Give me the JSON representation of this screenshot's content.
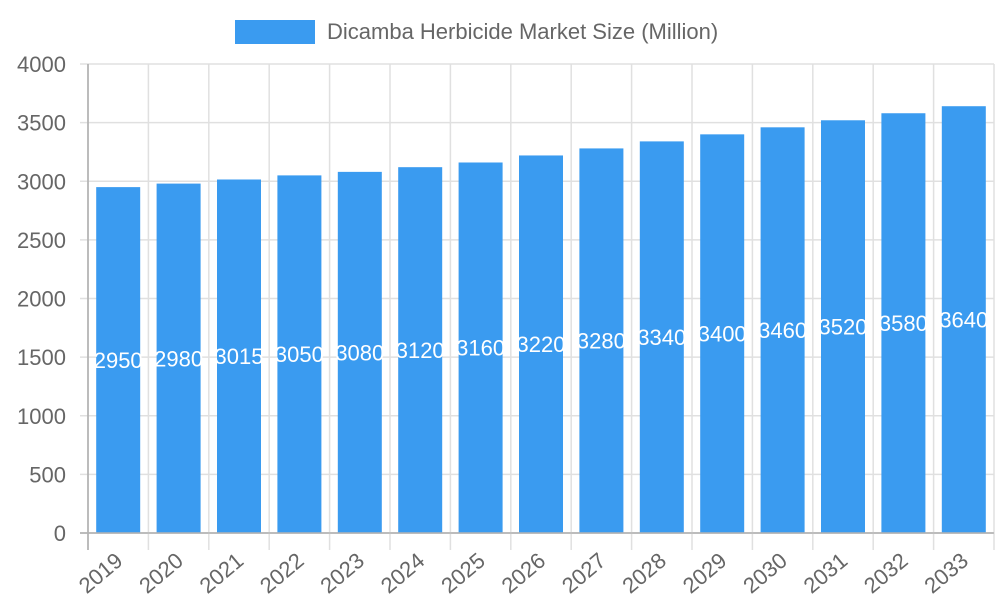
{
  "legend": {
    "label": "Dicamba Herbicide Market Size (Million)",
    "color": "#3a9bf0"
  },
  "chart_data": {
    "type": "bar",
    "title": "",
    "xlabel": "",
    "ylabel": "",
    "categories": [
      "2019",
      "2020",
      "2021",
      "2022",
      "2023",
      "2024",
      "2025",
      "2026",
      "2027",
      "2028",
      "2029",
      "2030",
      "2031",
      "2032",
      "2033"
    ],
    "series": [
      {
        "name": "Dicamba Herbicide Market Size (Million)",
        "color": "#3a9bf0",
        "values": [
          2950,
          2980,
          3015,
          3050,
          3080,
          3120,
          3160,
          3220,
          3280,
          3340,
          3400,
          3460,
          3520,
          3580,
          3640
        ]
      }
    ],
    "ylim": [
      0,
      4000
    ],
    "yticks": [
      0,
      500,
      1000,
      1500,
      2000,
      2500,
      3000,
      3500,
      4000
    ],
    "grid": true,
    "legend_position": "top",
    "data_labels": true
  }
}
